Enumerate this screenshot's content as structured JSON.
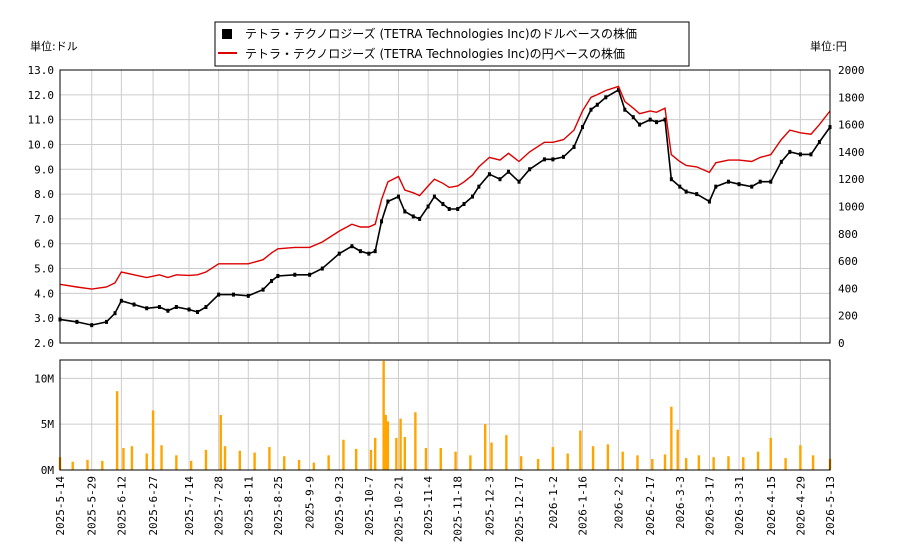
{
  "chart_data": [
    {
      "type": "line",
      "legend": [
        {
          "name": "テトラ・テクノロジーズ (TETRA Technologies Inc)のドルベースの株価",
          "color": "#000000",
          "marker": "square"
        },
        {
          "name": "テトラ・テクノロジーズ (TETRA Technologies Inc)の円ベースの株価",
          "color": "#dd0000",
          "marker": "line"
        }
      ],
      "left_unit_label": "単位:ドル",
      "right_unit_label": "単位:円",
      "left_axis": {
        "min": 2.0,
        "max": 13.0,
        "ticks": [
          "2.0",
          "3.0",
          "4.0",
          "5.0",
          "6.0",
          "7.0",
          "8.0",
          "9.0",
          "10.0",
          "11.0",
          "12.0",
          "13.0"
        ]
      },
      "right_axis": {
        "min": 0,
        "max": 2000,
        "ticks": [
          "0",
          "200",
          "400",
          "600",
          "800",
          "1000",
          "1200",
          "1400",
          "1600",
          "1800",
          "2000"
        ]
      },
      "grid": true,
      "series": [
        {
          "name": "テトラ・テクノロジーズ (TETRA Technologies Inc)のドルベースの株価",
          "axis": "left",
          "color": "#000000",
          "points": [
            [
              "2025-05-14",
              2.95
            ],
            [
              "2025-05-22",
              2.85
            ],
            [
              "2025-05-29",
              2.72
            ],
            [
              "2025-06-05",
              2.85
            ],
            [
              "2025-06-09",
              3.2
            ],
            [
              "2025-06-12",
              3.7
            ],
            [
              "2025-06-18",
              3.55
            ],
            [
              "2025-06-24",
              3.4
            ],
            [
              "2025-06-30",
              3.45
            ],
            [
              "2025-07-04",
              3.3
            ],
            [
              "2025-07-08",
              3.45
            ],
            [
              "2025-07-14",
              3.35
            ],
            [
              "2025-07-18",
              3.25
            ],
            [
              "2025-07-22",
              3.45
            ],
            [
              "2025-07-28",
              3.95
            ],
            [
              "2025-08-04",
              3.95
            ],
            [
              "2025-08-11",
              3.9
            ],
            [
              "2025-08-18",
              4.15
            ],
            [
              "2025-08-22",
              4.5
            ],
            [
              "2025-08-25",
              4.7
            ],
            [
              "2025-09-02",
              4.75
            ],
            [
              "2025-09-09",
              4.75
            ],
            [
              "2025-09-15",
              5.0
            ],
            [
              "2025-09-23",
              5.6
            ],
            [
              "2025-09-29",
              5.9
            ],
            [
              "2025-10-03",
              5.7
            ],
            [
              "2025-10-07",
              5.6
            ],
            [
              "2025-10-10",
              5.7
            ],
            [
              "2025-10-13",
              6.9
            ],
            [
              "2025-10-16",
              7.7
            ],
            [
              "2025-10-21",
              7.9
            ],
            [
              "2025-10-24",
              7.3
            ],
            [
              "2025-10-28",
              7.1
            ],
            [
              "2025-10-31",
              7.0
            ],
            [
              "2025-11-04",
              7.5
            ],
            [
              "2025-11-07",
              7.9
            ],
            [
              "2025-11-11",
              7.6
            ],
            [
              "2025-11-14",
              7.4
            ],
            [
              "2025-11-18",
              7.4
            ],
            [
              "2025-11-21",
              7.6
            ],
            [
              "2025-11-25",
              7.9
            ],
            [
              "2025-11-28",
              8.3
            ],
            [
              "2025-12-03",
              8.8
            ],
            [
              "2025-12-08",
              8.6
            ],
            [
              "2025-12-12",
              8.9
            ],
            [
              "2025-12-17",
              8.5
            ],
            [
              "2025-12-22",
              9.0
            ],
            [
              "2025-12-29",
              9.4
            ],
            [
              "2026-01-02",
              9.4
            ],
            [
              "2026-01-07",
              9.5
            ],
            [
              "2026-01-12",
              9.9
            ],
            [
              "2026-01-16",
              10.7
            ],
            [
              "2026-01-20",
              11.4
            ],
            [
              "2026-01-23",
              11.6
            ],
            [
              "2026-01-27",
              11.9
            ],
            [
              "2026-02-02",
              12.2
            ],
            [
              "2026-02-05",
              11.4
            ],
            [
              "2026-02-09",
              11.1
            ],
            [
              "2026-02-12",
              10.8
            ],
            [
              "2026-02-17",
              11.0
            ],
            [
              "2026-02-20",
              10.9
            ],
            [
              "2026-02-24",
              11.0
            ],
            [
              "2026-02-27",
              8.6
            ],
            [
              "2026-03-03",
              8.3
            ],
            [
              "2026-03-06",
              8.1
            ],
            [
              "2026-03-11",
              8.0
            ],
            [
              "2026-03-17",
              7.7
            ],
            [
              "2026-03-20",
              8.3
            ],
            [
              "2026-03-26",
              8.5
            ],
            [
              "2026-03-31",
              8.4
            ],
            [
              "2026-04-06",
              8.3
            ],
            [
              "2026-04-10",
              8.5
            ],
            [
              "2026-04-15",
              8.5
            ],
            [
              "2026-04-20",
              9.3
            ],
            [
              "2026-04-24",
              9.7
            ],
            [
              "2026-04-29",
              9.6
            ],
            [
              "2026-05-04",
              9.6
            ],
            [
              "2026-05-08",
              10.1
            ],
            [
              "2026-05-13",
              10.7
            ]
          ]
        },
        {
          "name": "テトラ・テクノロジーズ (TETRA Technologies Inc)の円ベースの株価",
          "axis": "right",
          "color": "#dd0000",
          "points": [
            [
              "2025-05-14",
              430
            ],
            [
              "2025-05-22",
              410
            ],
            [
              "2025-05-29",
              395
            ],
            [
              "2025-06-05",
              410
            ],
            [
              "2025-06-09",
              440
            ],
            [
              "2025-06-12",
              520
            ],
            [
              "2025-06-18",
              500
            ],
            [
              "2025-06-24",
              480
            ],
            [
              "2025-06-30",
              500
            ],
            [
              "2025-07-04",
              480
            ],
            [
              "2025-07-08",
              500
            ],
            [
              "2025-07-14",
              495
            ],
            [
              "2025-07-18",
              500
            ],
            [
              "2025-07-22",
              520
            ],
            [
              "2025-07-28",
              580
            ],
            [
              "2025-08-04",
              580
            ],
            [
              "2025-08-11",
              580
            ],
            [
              "2025-08-18",
              610
            ],
            [
              "2025-08-22",
              660
            ],
            [
              "2025-08-25",
              690
            ],
            [
              "2025-09-02",
              700
            ],
            [
              "2025-09-09",
              700
            ],
            [
              "2025-09-15",
              740
            ],
            [
              "2025-09-23",
              820
            ],
            [
              "2025-09-29",
              870
            ],
            [
              "2025-10-03",
              850
            ],
            [
              "2025-10-07",
              850
            ],
            [
              "2025-10-10",
              870
            ],
            [
              "2025-10-13",
              1050
            ],
            [
              "2025-10-16",
              1180
            ],
            [
              "2025-10-21",
              1220
            ],
            [
              "2025-10-24",
              1120
            ],
            [
              "2025-10-28",
              1100
            ],
            [
              "2025-10-31",
              1080
            ],
            [
              "2025-11-04",
              1150
            ],
            [
              "2025-11-07",
              1200
            ],
            [
              "2025-11-11",
              1170
            ],
            [
              "2025-11-14",
              1140
            ],
            [
              "2025-11-18",
              1150
            ],
            [
              "2025-11-21",
              1180
            ],
            [
              "2025-11-25",
              1230
            ],
            [
              "2025-11-28",
              1290
            ],
            [
              "2025-12-03",
              1360
            ],
            [
              "2025-12-08",
              1340
            ],
            [
              "2025-12-12",
              1390
            ],
            [
              "2025-12-17",
              1330
            ],
            [
              "2025-12-22",
              1400
            ],
            [
              "2025-12-29",
              1470
            ],
            [
              "2026-01-02",
              1470
            ],
            [
              "2026-01-07",
              1490
            ],
            [
              "2026-01-12",
              1560
            ],
            [
              "2026-01-16",
              1700
            ],
            [
              "2026-01-20",
              1800
            ],
            [
              "2026-01-23",
              1820
            ],
            [
              "2026-01-27",
              1850
            ],
            [
              "2026-02-02",
              1880
            ],
            [
              "2026-02-05",
              1770
            ],
            [
              "2026-02-09",
              1720
            ],
            [
              "2026-02-12",
              1680
            ],
            [
              "2026-02-17",
              1700
            ],
            [
              "2026-02-20",
              1690
            ],
            [
              "2026-02-24",
              1720
            ],
            [
              "2026-02-27",
              1380
            ],
            [
              "2026-03-03",
              1330
            ],
            [
              "2026-03-06",
              1300
            ],
            [
              "2026-03-11",
              1290
            ],
            [
              "2026-03-17",
              1250
            ],
            [
              "2026-03-20",
              1320
            ],
            [
              "2026-03-26",
              1340
            ],
            [
              "2026-03-31",
              1340
            ],
            [
              "2026-04-06",
              1330
            ],
            [
              "2026-04-10",
              1360
            ],
            [
              "2026-04-15",
              1380
            ],
            [
              "2026-04-20",
              1490
            ],
            [
              "2026-04-24",
              1560
            ],
            [
              "2026-04-29",
              1540
            ],
            [
              "2026-05-04",
              1530
            ],
            [
              "2026-05-08",
              1600
            ],
            [
              "2026-05-13",
              1700
            ]
          ]
        }
      ]
    },
    {
      "type": "bar",
      "name": "volume",
      "color": "#ffa500",
      "y_axis": {
        "min": 0,
        "max": 12000000,
        "ticks": [
          "0M",
          "5M",
          "10M"
        ]
      },
      "x_tick_labels": [
        "2025-5-14",
        "2025-5-29",
        "2025-6-12",
        "2025-6-27",
        "2025-7-14",
        "2025-7-28",
        "2025-8-11",
        "2025-8-25",
        "2025-9-9",
        "2025-9-23",
        "2025-10-7",
        "2025-10-21",
        "2025-11-4",
        "2025-11-18",
        "2025-12-3",
        "2025-12-17",
        "2026-1-2",
        "2026-1-16",
        "2026-2-2",
        "2026-2-17",
        "2026-3-3",
        "2026-3-17",
        "2026-3-31",
        "2026-4-15",
        "2026-4-29",
        "2026-5-13"
      ],
      "points": [
        [
          "2025-05-14",
          1.4
        ],
        [
          "2025-05-20",
          0.9
        ],
        [
          "2025-05-27",
          1.1
        ],
        [
          "2025-06-03",
          1.0
        ],
        [
          "2025-06-10",
          8.6
        ],
        [
          "2025-06-13",
          2.4
        ],
        [
          "2025-06-17",
          2.6
        ],
        [
          "2025-06-24",
          1.8
        ],
        [
          "2025-06-27",
          6.5
        ],
        [
          "2025-07-01",
          2.7
        ],
        [
          "2025-07-08",
          1.6
        ],
        [
          "2025-07-15",
          1.0
        ],
        [
          "2025-07-22",
          2.2
        ],
        [
          "2025-07-29",
          6.0
        ],
        [
          "2025-07-31",
          2.6
        ],
        [
          "2025-08-07",
          2.1
        ],
        [
          "2025-08-14",
          1.9
        ],
        [
          "2025-08-21",
          2.5
        ],
        [
          "2025-08-28",
          1.5
        ],
        [
          "2025-09-04",
          1.1
        ],
        [
          "2025-09-11",
          0.8
        ],
        [
          "2025-09-18",
          1.6
        ],
        [
          "2025-09-25",
          3.3
        ],
        [
          "2025-10-01",
          2.3
        ],
        [
          "2025-10-08",
          2.2
        ],
        [
          "2025-10-10",
          3.5
        ],
        [
          "2025-10-14",
          11.9
        ],
        [
          "2025-10-15",
          6.0
        ],
        [
          "2025-10-16",
          5.3
        ],
        [
          "2025-10-20",
          3.5
        ],
        [
          "2025-10-22",
          5.6
        ],
        [
          "2025-10-24",
          3.6
        ],
        [
          "2025-10-29",
          6.3
        ],
        [
          "2025-11-03",
          2.4
        ],
        [
          "2025-11-10",
          2.4
        ],
        [
          "2025-11-17",
          2.0
        ],
        [
          "2025-11-24",
          1.6
        ],
        [
          "2025-12-01",
          5.0
        ],
        [
          "2025-12-04",
          3.0
        ],
        [
          "2025-12-11",
          3.8
        ],
        [
          "2025-12-18",
          1.5
        ],
        [
          "2025-12-26",
          1.2
        ],
        [
          "2026-01-02",
          2.5
        ],
        [
          "2026-01-09",
          1.8
        ],
        [
          "2026-01-15",
          4.3
        ],
        [
          "2026-01-21",
          2.6
        ],
        [
          "2026-01-28",
          2.8
        ],
        [
          "2026-02-04",
          2.0
        ],
        [
          "2026-02-11",
          1.6
        ],
        [
          "2026-02-18",
          1.2
        ],
        [
          "2026-02-24",
          1.7
        ],
        [
          "2026-02-27",
          6.9
        ],
        [
          "2026-03-02",
          4.4
        ],
        [
          "2026-03-06",
          1.3
        ],
        [
          "2026-03-12",
          1.6
        ],
        [
          "2026-03-19",
          1.4
        ],
        [
          "2026-03-26",
          1.5
        ],
        [
          "2026-04-02",
          1.4
        ],
        [
          "2026-04-09",
          2.0
        ],
        [
          "2026-04-15",
          3.5
        ],
        [
          "2026-04-22",
          1.3
        ],
        [
          "2026-04-29",
          2.7
        ],
        [
          "2026-05-05",
          1.6
        ],
        [
          "2026-05-13",
          1.2
        ]
      ]
    }
  ]
}
